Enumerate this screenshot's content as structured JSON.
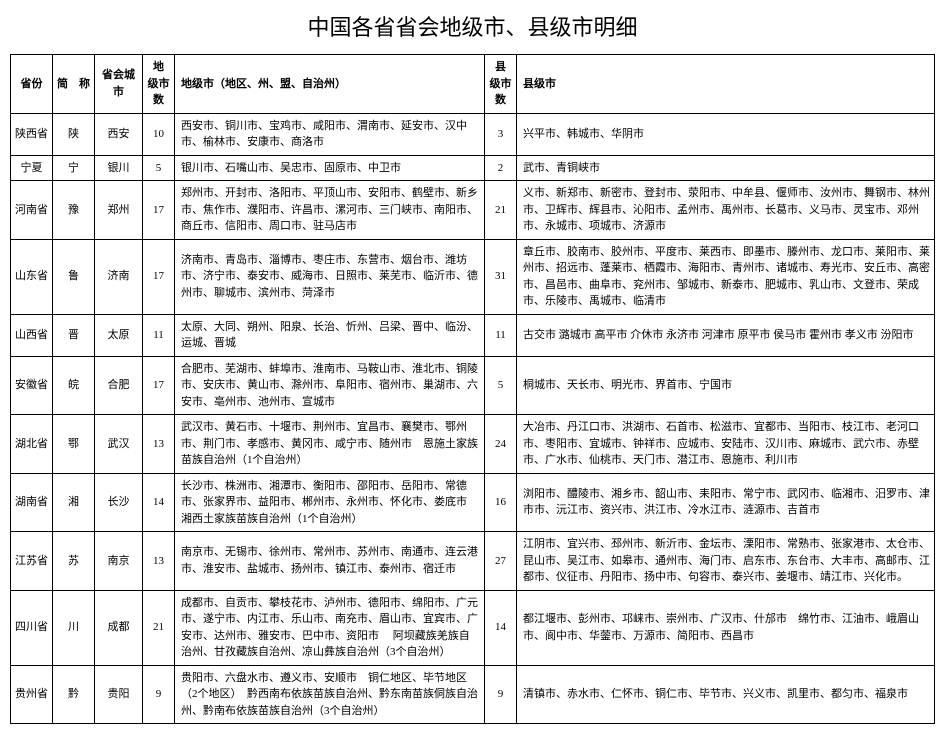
{
  "title": "中国各省省会地级市、县级市明细",
  "columns": {
    "province": "省份",
    "abbr": "简　称",
    "capital": "省会城市",
    "prefCount": "地　级市数",
    "prefList": "地级市（地区、州、盟、自治州）",
    "countyCount": "县　级市数",
    "countyList": "县级市"
  },
  "rows": [
    {
      "province": "陕西省",
      "abbr": "陕",
      "capital": "西安",
      "prefCount": "10",
      "prefList": "西安市、铜川市、宝鸡市、咸阳市、渭南市、延安市、汉中市、榆林市、安康市、商洛市",
      "countyCount": "3",
      "countyList": "兴平市、韩城市、华阴市"
    },
    {
      "province": "宁夏",
      "abbr": "宁",
      "capital": "银川",
      "prefCount": "5",
      "prefList": "银川市、石嘴山市、吴忠市、固原市、中卫市",
      "countyCount": "2",
      "countyList": "武市、青铜峡市"
    },
    {
      "province": "河南省",
      "abbr": "豫",
      "capital": "郑州",
      "prefCount": "17",
      "prefList": "郑州市、开封市、洛阳市、平顶山市、安阳市、鹤壁市、新乡市、焦作市、濮阳市、许昌市、漯河市、三门峡市、南阳市、商丘市、信阳市、周口市、驻马店市",
      "countyCount": "21",
      "countyList": "义市、新郑市、新密市、登封市、荥阳市、中牟县、偃师市、汝州市、舞钢市、林州市、卫辉市、辉县市、沁阳市、孟州市、禹州市、长葛市、义马市、灵宝市、邓州市、永城市、项城市、济源市"
    },
    {
      "province": "山东省",
      "abbr": "鲁",
      "capital": "济南",
      "prefCount": "17",
      "prefList": "济南市、青岛市、淄博市、枣庄市、东营市、烟台市、潍坊市、济宁市、泰安市、威海市、日照市、莱芜市、临沂市、德州市、聊城市、滨州市、菏泽市",
      "countyCount": "31",
      "countyList": "章丘市、胶南市、胶州市、平度市、莱西市、即墨市、滕州市、龙口市、莱阳市、莱州市、招远市、蓬莱市、栖霞市、海阳市、青州市、诸城市、寿光市、安丘市、高密市、昌邑市、曲阜市、兖州市、邹城市、新泰市、肥城市、乳山市、文登市、荣成市、乐陵市、禹城市、临清市"
    },
    {
      "province": "山西省",
      "abbr": "晋",
      "capital": "太原",
      "prefCount": "11",
      "prefList": "太原、大同、朔州、阳泉、长治、忻州、吕梁、晋中、临汾、运城、晋城",
      "countyCount": "11",
      "countyList": "古交市 潞城市 高平市 介休市 永济市 河津市 原平市 侯马市 霍州市 孝义市 汾阳市"
    },
    {
      "province": "安徽省",
      "abbr": "皖",
      "capital": "合肥",
      "prefCount": "17",
      "prefList": "合肥市、芜湖市、蚌埠市、淮南市、马鞍山市、淮北市、铜陵市、安庆市、黄山市、滁州市、阜阳市、宿州市、巢湖市、六安市、亳州市、池州市、宣城市",
      "countyCount": "5",
      "countyList": "桐城市、天长市、明光市、界首市、宁国市"
    },
    {
      "province": "湖北省",
      "abbr": "鄂",
      "capital": "武汉",
      "prefCount": "13",
      "prefList": "武汉市、黄石市、十堰市、荆州市、宜昌市、襄樊市、鄂州市、荆门市、孝感市、黄冈市、咸宁市、随州市　恩施土家族苗族自治州（1个自治州）",
      "countyCount": "24",
      "countyList": "大冶市、丹江口市、洪湖市、石首市、松滋市、宜都市、当阳市、枝江市、老河口市、枣阳市、宜城市、钟祥市、应城市、安陆市、汉川市、麻城市、武穴市、赤壁市、广水市、仙桃市、天门市、潜江市、恩施市、利川市"
    },
    {
      "province": "湖南省",
      "abbr": "湘",
      "capital": "长沙",
      "prefCount": "14",
      "prefList": "长沙市、株洲市、湘潭市、衡阳市、邵阳市、岳阳市、常德市、张家界市、益阳市、郴州市、永州市、怀化市、娄底市　湘西土家族苗族自治州（1个自治州）",
      "countyCount": "16",
      "countyList": "浏阳市、醴陵市、湘乡市、韶山市、耒阳市、常宁市、武冈市、临湘市、汨罗市、津市市、沅江市、资兴市、洪江市、冷水江市、涟源市、吉首市"
    },
    {
      "province": "江苏省",
      "abbr": "苏",
      "capital": "南京",
      "prefCount": "13",
      "prefList": "南京市、无锡市、徐州市、常州市、苏州市、南通市、连云港市、淮安市、盐城市、扬州市、镇江市、泰州市、宿迁市",
      "countyCount": "27",
      "countyList": "江阴市、宜兴市、邳州市、新沂市、金坛市、溧阳市、常熟市、张家港市、太仓市、昆山市、吴江市、如皋市、通州市、海门市、启东市、东台市、大丰市、高邮市、江都市、仪征市、丹阳市、扬中市、句容市、泰兴市、姜堰市、靖江市、兴化市。"
    },
    {
      "province": "四川省",
      "abbr": "川",
      "capital": "成都",
      "prefCount": "21",
      "prefList": "成都市、自贡市、攀枝花市、泸州市、德阳市、绵阳市、广元市、遂宁市、内江市、乐山市、南充市、眉山市、宜宾市、广安市、达州市、雅安市、巴中市、资阳市　 阿坝藏族羌族自治州、甘孜藏族自治州、凉山彝族自治州（3个自治州）",
      "countyCount": "14",
      "countyList": "都江堰市、彭州市、邛崃市、崇州市、广汉市、什邡市　绵竹市、江油市、峨眉山市、阆中市、华蓥市、万源市、简阳市、西昌市"
    },
    {
      "province": "贵州省",
      "abbr": "黔",
      "capital": "贵阳",
      "prefCount": "9",
      "prefList": "贵阳市、六盘水市、遵义市、安顺市　铜仁地区、毕节地区（2个地区）　黔西南布依族苗族自治州、黔东南苗族侗族自治州、黔南布依族苗族自治州（3个自治州）",
      "countyCount": "9",
      "countyList": "清镇市、赤水市、仁怀市、铜仁市、毕节市、兴义市、凯里市、都匀市、福泉市"
    }
  ],
  "style": {
    "title_fontsize": 22,
    "body_fontsize": 11,
    "border_color": "#000000",
    "background_color": "#ffffff",
    "font_family": "SimSun"
  }
}
